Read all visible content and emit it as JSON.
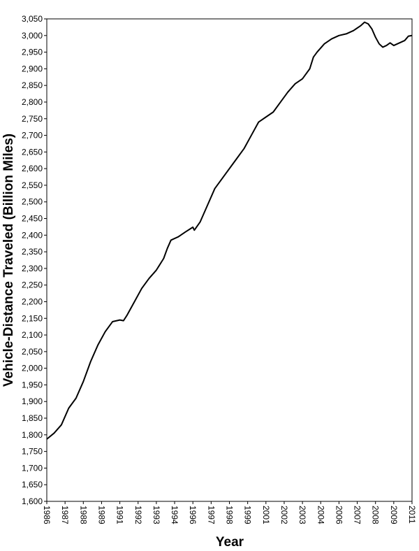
{
  "chart_data": {
    "type": "line",
    "xlabel": "Year",
    "ylabel": "Vehicle-Distance Traveled (Billion Miles)",
    "color": "#000000",
    "grid": false,
    "x": [
      1986.0,
      1986.5,
      1987.0,
      1987.5,
      1988.0,
      1988.5,
      1989.0,
      1989.5,
      1990.0,
      1990.5,
      1991.0,
      1991.25,
      1991.5,
      1992.0,
      1992.5,
      1993.0,
      1993.5,
      1994.0,
      1994.25,
      1994.5,
      1995.0,
      1995.5,
      1996.0,
      1996.1,
      1996.5,
      1997.0,
      1997.5,
      1998.0,
      1998.5,
      1999.0,
      1999.5,
      2000.0,
      2000.5,
      2001.0,
      2001.5,
      2002.0,
      2002.5,
      2003.0,
      2003.5,
      2004.0,
      2004.25,
      2004.5,
      2005.0,
      2005.5,
      2006.0,
      2006.5,
      2007.0,
      2007.5,
      2007.75,
      2008.0,
      2008.25,
      2008.5,
      2008.75,
      2009.0,
      2009.25,
      2009.5,
      2009.75,
      2010.0,
      2010.5,
      2010.75,
      2011.0
    ],
    "values": [
      1787,
      1805,
      1830,
      1880,
      1910,
      1960,
      2020,
      2070,
      2110,
      2140,
      2145,
      2143,
      2160,
      2200,
      2240,
      2270,
      2295,
      2330,
      2360,
      2385,
      2395,
      2410,
      2424,
      2415,
      2440,
      2490,
      2540,
      2570,
      2600,
      2630,
      2660,
      2700,
      2740,
      2755,
      2770,
      2800,
      2830,
      2855,
      2870,
      2900,
      2935,
      2950,
      2975,
      2990,
      3000,
      3005,
      3015,
      3030,
      3040,
      3035,
      3020,
      2995,
      2975,
      2965,
      2970,
      2978,
      2970,
      2975,
      2985,
      2998,
      3000
    ],
    "xlim": [
      1986,
      2011
    ],
    "xticks": [
      {
        "value": 1986,
        "label": "1986"
      },
      {
        "value": 1987.25,
        "label": "1987"
      },
      {
        "value": 1988.5,
        "label": "1988"
      },
      {
        "value": 1989.75,
        "label": "1989"
      },
      {
        "value": 1991,
        "label": "1991"
      },
      {
        "value": 1992.25,
        "label": "1992"
      },
      {
        "value": 1993.5,
        "label": "1993"
      },
      {
        "value": 1994.75,
        "label": "1994"
      },
      {
        "value": 1996,
        "label": "1996"
      },
      {
        "value": 1997.25,
        "label": "1997"
      },
      {
        "value": 1998.5,
        "label": "1998"
      },
      {
        "value": 1999.75,
        "label": "1999"
      },
      {
        "value": 2001,
        "label": "2001"
      },
      {
        "value": 2002.25,
        "label": "2002"
      },
      {
        "value": 2003.5,
        "label": "2003"
      },
      {
        "value": 2004.75,
        "label": "2004"
      },
      {
        "value": 2006,
        "label": "2006"
      },
      {
        "value": 2007.25,
        "label": "2007"
      },
      {
        "value": 2008.5,
        "label": "2008"
      },
      {
        "value": 2009.75,
        "label": "2009"
      },
      {
        "value": 2011,
        "label": "2011"
      }
    ],
    "ylim": [
      1600,
      3050
    ],
    "yticks": [
      {
        "value": 1600,
        "label": "1,600"
      },
      {
        "value": 1650,
        "label": "1,650"
      },
      {
        "value": 1700,
        "label": "1,700"
      },
      {
        "value": 1750,
        "label": "1,750"
      },
      {
        "value": 1800,
        "label": "1,800"
      },
      {
        "value": 1850,
        "label": "1,850"
      },
      {
        "value": 1900,
        "label": "1,900"
      },
      {
        "value": 1950,
        "label": "1,950"
      },
      {
        "value": 2000,
        "label": "2,000"
      },
      {
        "value": 2050,
        "label": "2,050"
      },
      {
        "value": 2100,
        "label": "2,100"
      },
      {
        "value": 2150,
        "label": "2,150"
      },
      {
        "value": 2200,
        "label": "2,200"
      },
      {
        "value": 2250,
        "label": "2,250"
      },
      {
        "value": 2300,
        "label": "2,300"
      },
      {
        "value": 2350,
        "label": "2,350"
      },
      {
        "value": 2400,
        "label": "2,400"
      },
      {
        "value": 2450,
        "label": "2,450"
      },
      {
        "value": 2500,
        "label": "2,500"
      },
      {
        "value": 2550,
        "label": "2,550"
      },
      {
        "value": 2600,
        "label": "2,600"
      },
      {
        "value": 2650,
        "label": "2,650"
      },
      {
        "value": 2700,
        "label": "2,700"
      },
      {
        "value": 2750,
        "label": "2,750"
      },
      {
        "value": 2800,
        "label": "2,800"
      },
      {
        "value": 2850,
        "label": "2,850"
      },
      {
        "value": 2900,
        "label": "2,900"
      },
      {
        "value": 2950,
        "label": "2,950"
      },
      {
        "value": 3000,
        "label": "3,000"
      },
      {
        "value": 3050,
        "label": "3,050"
      }
    ]
  }
}
